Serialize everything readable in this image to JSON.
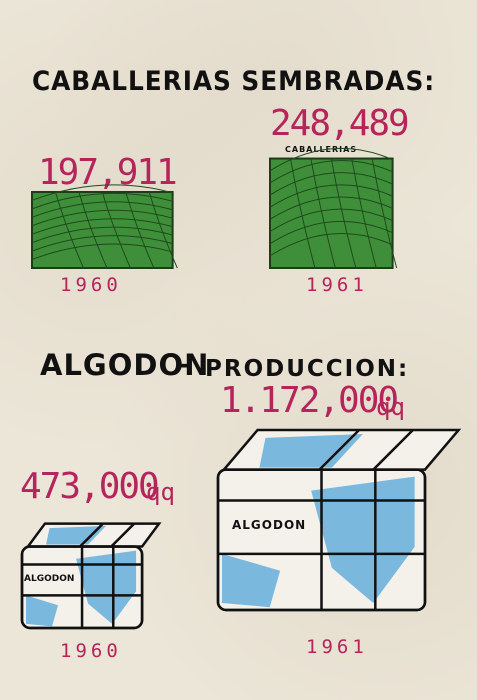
{
  "chart_data": [
    {
      "type": "bar",
      "title": "CABALLERIAS SEMBRADAS:",
      "categories": [
        "1960",
        "1961"
      ],
      "values": [
        197911,
        248489
      ],
      "value_labels": [
        "197,911",
        "248,489"
      ],
      "unit_label": "CABALLERIAS",
      "field_color": "#3f8f3a"
    },
    {
      "type": "bar",
      "title": "ALGODON",
      "title_suffix": "PRODUCCION:",
      "categories": [
        "1960",
        "1961"
      ],
      "values": [
        473000,
        1172000
      ],
      "value_labels": [
        "473,000",
        "1.172,000"
      ],
      "unit_label": "qq",
      "bale_label": "ALGODON",
      "bale_color": "#7bb8de"
    }
  ]
}
